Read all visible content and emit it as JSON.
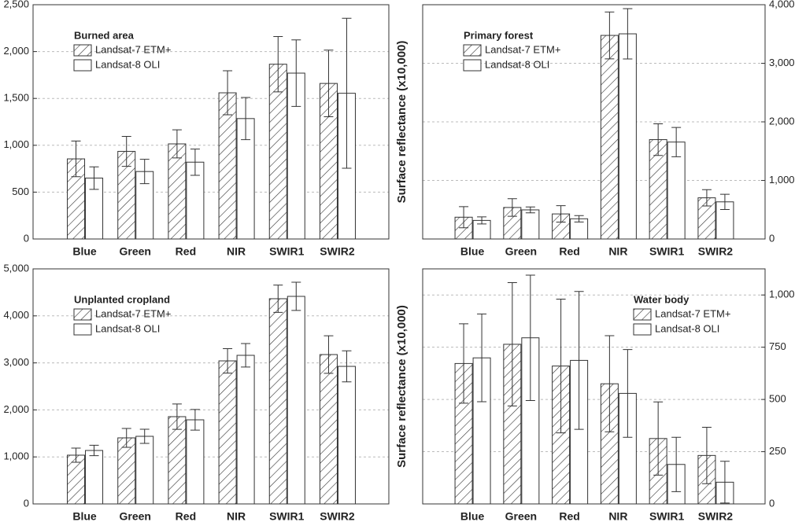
{
  "chart_data": [
    {
      "type": "bar",
      "title": "Burned area",
      "axis_side": "left",
      "legend": "upper left",
      "categories": [
        "Blue",
        "Green",
        "Red",
        "NIR",
        "SWIR1",
        "SWIR2"
      ],
      "series": [
        {
          "name": "Landsat-7 ETM+",
          "color": "#ffffff",
          "hatch": true,
          "values": [
            855,
            935,
            1015,
            1560,
            1865,
            1660
          ],
          "errors": [
            190,
            160,
            150,
            235,
            295,
            355
          ]
        },
        {
          "name": "Landsat-8 OLI",
          "color": "#ffffff",
          "hatch": false,
          "values": [
            650,
            720,
            820,
            1285,
            1770,
            1555
          ],
          "errors": [
            120,
            130,
            140,
            225,
            355,
            800
          ]
        }
      ],
      "ylim": [
        0,
        2500
      ],
      "yticks": [
        0,
        500,
        {
          "value": 1000,
          "label": "1,000"
        },
        {
          "value": 1500,
          "label": "1,500"
        },
        {
          "value": 2000,
          "label": "2,000"
        },
        {
          "value": 2500,
          "label": "2,500"
        }
      ],
      "grid": true
    },
    {
      "type": "bar",
      "title": "Primary forest",
      "axis_side": "right",
      "legend": "upper left",
      "ylabel": "Surface reflectance (x10,000)",
      "categories": [
        "Blue",
        "Green",
        "Red",
        "NIR",
        "SWIR1",
        "SWIR2"
      ],
      "series": [
        {
          "name": "Landsat-7 ETM+",
          "color": "#ffffff",
          "hatch": true,
          "values": [
            372,
            538,
            428,
            3476,
            1697,
            703
          ],
          "errors": [
            180,
            150,
            140,
            400,
            270,
            140
          ]
        },
        {
          "name": "Landsat-8 OLI",
          "color": "#ffffff",
          "hatch": false,
          "values": [
            317,
            497,
            345,
            3503,
            1655,
            634
          ],
          "errors": [
            60,
            50,
            55,
            430,
            250,
            130
          ]
        }
      ],
      "ylim": [
        0,
        4000
      ],
      "yticks": [
        0,
        {
          "value": 1000,
          "label": "1,000"
        },
        {
          "value": 2000,
          "label": "2,000"
        },
        {
          "value": 3000,
          "label": "3,000"
        },
        {
          "value": 4000,
          "label": "4,000"
        }
      ],
      "grid": true
    },
    {
      "type": "bar",
      "title": "Unplanted cropland",
      "axis_side": "left",
      "legend": "upper left",
      "categories": [
        "Blue",
        "Green",
        "Red",
        "NIR",
        "SWIR1",
        "SWIR2"
      ],
      "series": [
        {
          "name": "Landsat-7 ETM+",
          "color": "#ffffff",
          "hatch": true,
          "values": [
            1037,
            1405,
            1856,
            3043,
            4365,
            3177
          ],
          "errors": [
            150,
            200,
            270,
            260,
            290,
            400
          ]
        },
        {
          "name": "Landsat-8 OLI",
          "color": "#ffffff",
          "hatch": false,
          "values": [
            1137,
            1438,
            1789,
            3161,
            4415,
            2926
          ],
          "errors": [
            110,
            150,
            220,
            250,
            300,
            330
          ]
        }
      ],
      "ylim": [
        0,
        5000
      ],
      "yticks": [
        0,
        {
          "value": 1000,
          "label": "1,000"
        },
        {
          "value": 2000,
          "label": "2,000"
        },
        {
          "value": 3000,
          "label": "3,000"
        },
        {
          "value": 4000,
          "label": "4,000"
        },
        {
          "value": 5000,
          "label": "5,000"
        }
      ],
      "grid": true
    },
    {
      "type": "bar",
      "title": "Water body",
      "axis_side": "right",
      "legend": "upper right",
      "ylabel": "Surface reflectance (x10,000)",
      "categories": [
        "Blue",
        "Green",
        "Red",
        "NIR",
        "SWIR1",
        "SWIR2"
      ],
      "series": [
        {
          "name": "Landsat-7 ETM+",
          "color": "#ffffff",
          "hatch": true,
          "values": [
            672,
            764,
            660,
            575,
            313,
            232
          ],
          "errors": [
            190,
            295,
            320,
            230,
            175,
            135
          ]
        },
        {
          "name": "Landsat-8 OLI",
          "color": "#ffffff",
          "hatch": false,
          "values": [
            699,
            795,
            687,
            529,
            189,
            104
          ],
          "errors": [
            210,
            300,
            330,
            210,
            130,
            100
          ]
        }
      ],
      "ylim": [
        0,
        1125
      ],
      "yticks": [
        0,
        250,
        500,
        750,
        {
          "value": 1000,
          "label": "1,000"
        }
      ],
      "grid": true
    }
  ]
}
